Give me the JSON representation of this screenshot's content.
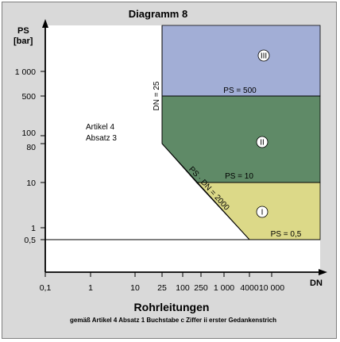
{
  "chart_data": {
    "type": "area",
    "title": "Diagramm 8",
    "xlabel": "DN",
    "ylabel_lines": [
      "PS",
      "[bar]"
    ],
    "x_title": "Rohrleitungen",
    "subtitle": "gemäß Artikel 4  Absatz 1 Buchstabe c Ziffer ii erster Gedankenstrich",
    "x_scale": "log",
    "y_scale": "log",
    "x_ticks": [
      {
        "value": 0.1,
        "label": "0,1"
      },
      {
        "value": 1,
        "label": "1"
      },
      {
        "value": 10,
        "label": "10"
      },
      {
        "value": 25,
        "label": "25"
      },
      {
        "value": 100,
        "label": "100"
      },
      {
        "value": 250,
        "label": "250"
      },
      {
        "value": 1000,
        "label": "1 000"
      },
      {
        "value": 4000,
        "label": "4000"
      },
      {
        "value": 10000,
        "label": "10 000"
      }
    ],
    "y_ticks": [
      {
        "value": 0.5,
        "label": "0,5"
      },
      {
        "value": 1,
        "label": "1"
      },
      {
        "value": 10,
        "label": "10"
      },
      {
        "value": 80,
        "label": "80"
      },
      {
        "value": 100,
        "label": "100"
      },
      {
        "value": 500,
        "label": "500"
      },
      {
        "value": 1000,
        "label": "1 000"
      }
    ],
    "regions": [
      {
        "category": "III",
        "color": "#a2aed6",
        "polygon": [
          [
            25,
            500
          ],
          [
            100000,
            500
          ],
          [
            100000,
            100000
          ],
          [
            25,
            100000
          ]
        ]
      },
      {
        "category": "II",
        "color": "#5f8a67",
        "polygon": [
          [
            25,
            80
          ],
          [
            25,
            500
          ],
          [
            100000,
            500
          ],
          [
            100000,
            10
          ],
          [
            200,
            10
          ]
        ]
      },
      {
        "category": "I",
        "color": "#dcd988",
        "polygon": [
          [
            200,
            10
          ],
          [
            100000,
            10
          ],
          [
            100000,
            0.5
          ],
          [
            4000,
            0.5
          ]
        ]
      }
    ],
    "annotations": {
      "article": [
        "Artikel 4",
        "Absatz 3"
      ],
      "dn_limit": "DN = 25",
      "ps_500": "PS = 500",
      "ps_10": "PS = 10",
      "ps_05": "PS = 0,5",
      "ps_dn": "PS · DN = 2000"
    },
    "boundary_lines": {
      "dn_limit": 25,
      "ps_dn_product": 2000,
      "ps_floor": 0.5
    }
  }
}
